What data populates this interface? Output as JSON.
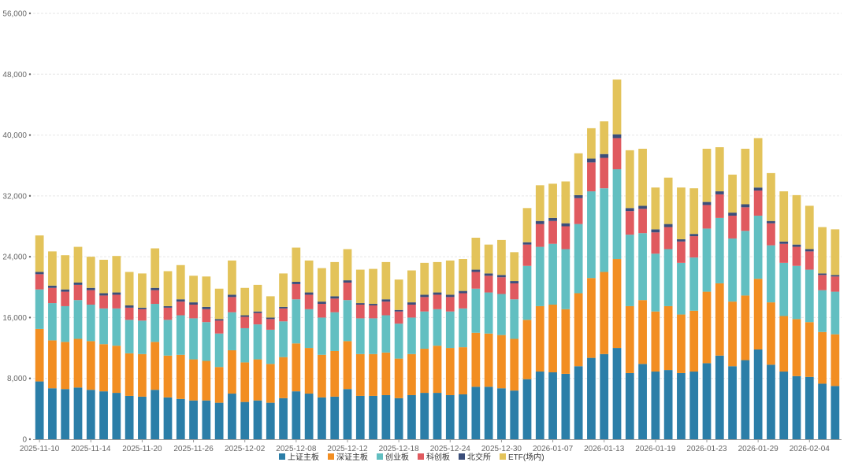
{
  "chart_data": {
    "type": "bar",
    "stacked": true,
    "title": "",
    "xlabel": "",
    "ylabel": "",
    "ylim": [
      0,
      56000
    ],
    "grid": true,
    "legend_position": "bottom",
    "y_ticks": [
      "0",
      "8,000",
      "16,000",
      "24,000",
      "32,000",
      "40,000",
      "48,000",
      "56,000"
    ],
    "y_tick_values": [
      0,
      8000,
      16000,
      24000,
      32000,
      40000,
      48000,
      56000
    ],
    "x_tick_labels": [
      {
        "index": 0,
        "label": "2025-11-10"
      },
      {
        "index": 4,
        "label": "2025-11-14"
      },
      {
        "index": 8,
        "label": "2025-11-20"
      },
      {
        "index": 12,
        "label": "2025-11-26"
      },
      {
        "index": 16,
        "label": "2025-12-02"
      },
      {
        "index": 20,
        "label": "2025-12-08"
      },
      {
        "index": 24,
        "label": "2025-12-12"
      },
      {
        "index": 28,
        "label": "2025-12-18"
      },
      {
        "index": 32,
        "label": "2025-12-24"
      },
      {
        "index": 36,
        "label": "2025-12-30"
      },
      {
        "index": 40,
        "label": "2026-01-07"
      },
      {
        "index": 44,
        "label": "2026-01-13"
      },
      {
        "index": 48,
        "label": "2026-01-19"
      },
      {
        "index": 52,
        "label": "2026-01-23"
      },
      {
        "index": 56,
        "label": "2026-01-29"
      },
      {
        "index": 60,
        "label": "2026-02-04"
      }
    ],
    "categories": [
      "2025-11-10",
      "2025-11-11",
      "2025-11-12",
      "2025-11-13",
      "2025-11-14",
      "2025-11-17",
      "2025-11-18",
      "2025-11-19",
      "2025-11-20",
      "2025-11-21",
      "2025-11-24",
      "2025-11-25",
      "2025-11-26",
      "2025-11-27",
      "2025-11-28",
      "2025-12-01",
      "2025-12-02",
      "2025-12-03",
      "2025-12-04",
      "2025-12-05",
      "2025-12-08",
      "2025-12-09",
      "2025-12-10",
      "2025-12-11",
      "2025-12-12",
      "2025-12-15",
      "2025-12-16",
      "2025-12-17",
      "2025-12-18",
      "2025-12-19",
      "2025-12-22",
      "2025-12-23",
      "2025-12-24",
      "2025-12-25",
      "2025-12-26",
      "2025-12-29",
      "2025-12-30",
      "2025-12-31",
      "2026-01-02",
      "2026-01-05",
      "2026-01-07",
      "2026-01-08",
      "2026-01-09",
      "2026-01-12",
      "2026-01-13",
      "2026-01-14",
      "2026-01-15",
      "2026-01-16",
      "2026-01-19",
      "2026-01-20",
      "2026-01-21",
      "2026-01-22",
      "2026-01-23",
      "2026-01-26",
      "2026-01-27",
      "2026-01-28",
      "2026-01-29",
      "2026-01-30",
      "2026-02-02",
      "2026-02-03",
      "2026-02-04",
      "2026-02-05",
      "2026-02-06"
    ],
    "series": [
      {
        "name": "上证主板",
        "color": "#2b7ea8",
        "values": [
          7600,
          6700,
          6600,
          6800,
          6500,
          6300,
          6100,
          5700,
          5600,
          6500,
          5500,
          5300,
          5100,
          5100,
          4800,
          6000,
          4900,
          5100,
          4800,
          5400,
          6300,
          6000,
          5500,
          5600,
          6600,
          5700,
          5700,
          5800,
          5400,
          5800,
          6100,
          6100,
          5800,
          5900,
          6900,
          6900,
          6700,
          6400,
          7900,
          8900,
          8800,
          8600,
          9600,
          10700,
          11200,
          12000,
          8700,
          9900,
          8900,
          9100,
          8700,
          8900,
          10000,
          11000,
          9600,
          10400,
          11800,
          9800,
          8900,
          8300,
          8200,
          7300,
          7000
        ]
      },
      {
        "name": "深证主板",
        "color": "#f28e22",
        "values": [
          6900,
          6300,
          6200,
          6400,
          6400,
          6200,
          6200,
          5600,
          5600,
          6300,
          5500,
          5800,
          5400,
          5200,
          4700,
          5700,
          5200,
          5400,
          5100,
          5400,
          6300,
          6000,
          5600,
          6000,
          6300,
          5500,
          5500,
          5600,
          5200,
          5400,
          5800,
          6200,
          6200,
          6200,
          7100,
          7000,
          7000,
          6800,
          7800,
          8600,
          8900,
          8500,
          9600,
          10500,
          10800,
          11700,
          8800,
          8400,
          7900,
          8400,
          7700,
          8000,
          9400,
          9500,
          8500,
          8500,
          9300,
          8200,
          7300,
          7500,
          7200,
          6800,
          6800
        ]
      },
      {
        "name": "创业板",
        "color": "#62bfc1",
        "values": [
          5200,
          4900,
          4700,
          5100,
          4800,
          4700,
          4900,
          4400,
          4400,
          5000,
          4700,
          5200,
          5400,
          5100,
          4400,
          5000,
          4500,
          4600,
          4500,
          4700,
          5800,
          5100,
          4900,
          5100,
          5400,
          4700,
          4700,
          4900,
          4600,
          4800,
          4900,
          4800,
          4800,
          5100,
          5800,
          5400,
          5400,
          5200,
          7100,
          7800,
          8000,
          7900,
          9100,
          11400,
          11000,
          11800,
          9400,
          8800,
          7600,
          7500,
          6800,
          7000,
          8300,
          8600,
          8300,
          8500,
          8300,
          7500,
          7000,
          7000,
          6900,
          5500,
          5600
        ]
      },
      {
        "name": "科创板",
        "color": "#e05a5f",
        "values": [
          2000,
          2000,
          1900,
          2000,
          1900,
          1700,
          1800,
          1600,
          1500,
          1800,
          1600,
          1800,
          1800,
          1700,
          1700,
          2000,
          1500,
          1500,
          1400,
          1700,
          2000,
          1900,
          1800,
          1800,
          2300,
          1800,
          1700,
          1800,
          1600,
          1700,
          1900,
          1900,
          1900,
          2000,
          2200,
          2200,
          2200,
          2100,
          2800,
          3000,
          3000,
          3000,
          3400,
          3800,
          4000,
          4100,
          3100,
          3200,
          2800,
          2900,
          2800,
          2800,
          3100,
          3100,
          3000,
          3100,
          3300,
          2900,
          2500,
          2500,
          2400,
          2000,
          2000
        ]
      },
      {
        "name": "北交所",
        "color": "#3b4e7a",
        "values": [
          300,
          300,
          300,
          300,
          300,
          300,
          300,
          300,
          200,
          300,
          200,
          300,
          300,
          300,
          200,
          300,
          200,
          200,
          200,
          200,
          300,
          300,
          300,
          300,
          300,
          200,
          200,
          300,
          200,
          300,
          300,
          300,
          300,
          300,
          300,
          300,
          300,
          300,
          300,
          400,
          400,
          400,
          400,
          500,
          500,
          500,
          400,
          400,
          400,
          400,
          300,
          300,
          400,
          400,
          400,
          400,
          400,
          300,
          300,
          300,
          300,
          200,
          200
        ]
      },
      {
        "name": "ETF(场内)",
        "color": "#e3c35a",
        "values": [
          4800,
          4500,
          4500,
          4700,
          4100,
          4400,
          4800,
          4400,
          4500,
          5200,
          4600,
          4500,
          3500,
          4000,
          4000,
          4500,
          3600,
          3500,
          2800,
          4400,
          4500,
          4200,
          4400,
          4500,
          4100,
          4400,
          4600,
          4900,
          4000,
          4200,
          4200,
          4000,
          4500,
          4200,
          4200,
          3800,
          4600,
          3800,
          4500,
          4700,
          4500,
          5500,
          5500,
          4000,
          4300,
          7200,
          7600,
          7500,
          5500,
          6100,
          6800,
          6000,
          7000,
          5800,
          5000,
          7300,
          6500,
          6300,
          6600,
          6500,
          5700,
          6100,
          6000
        ]
      }
    ]
  }
}
